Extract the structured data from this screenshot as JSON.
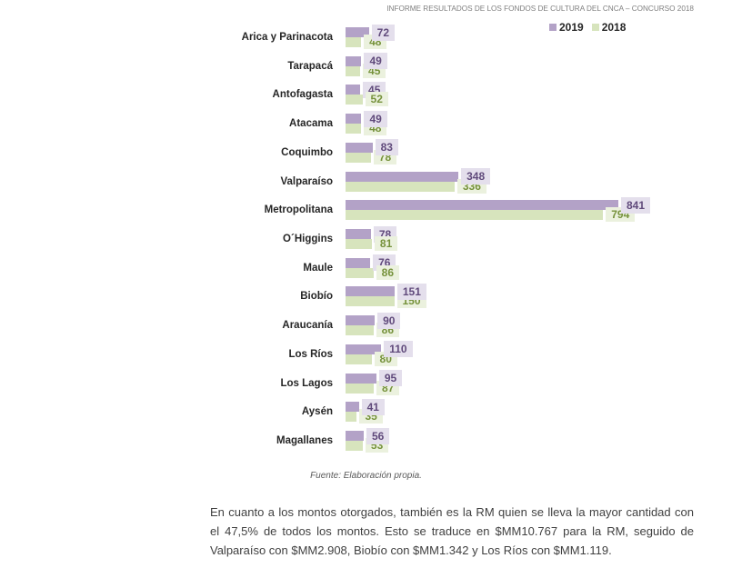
{
  "header": {
    "title": "INFORME RESULTADOS DE LOS FONDOS DE CULTURA DEL CNCA – CONCURSO 2018"
  },
  "chart_data": {
    "type": "bar",
    "orientation": "horizontal",
    "xlim": [
      0,
      1000
    ],
    "grid": false,
    "legend": "top-right",
    "categories": [
      "Arica y Parinacota",
      "Tarapacá",
      "Antofagasta",
      "Atacama",
      "Coquimbo",
      "Valparaíso",
      "Metropolitana",
      "O´Higgins",
      "Maule",
      "Biobío",
      "Araucanía",
      "Los Ríos",
      "Los Lagos",
      "Aysén",
      "Magallanes"
    ],
    "series": [
      {
        "name": "2019",
        "values": [
          72,
          49,
          45,
          49,
          83,
          348,
          841,
          78,
          76,
          151,
          90,
          110,
          95,
          41,
          56
        ],
        "color": "#b3a2c7",
        "label_color": "#604a7b",
        "label_fill": "#e4dfec"
      },
      {
        "name": "2018",
        "values": [
          48,
          45,
          52,
          48,
          78,
          336,
          794,
          81,
          86,
          150,
          86,
          80,
          87,
          35,
          53
        ],
        "color": "#d7e4bd",
        "label_color": "#76923c",
        "label_fill": "#ebf1de"
      }
    ]
  },
  "caption": {
    "source": "Fuente: Elaboración propia."
  },
  "body": {
    "paragraph_lines": [
      "En cuanto a los montos otorgados, también es la RM quien se lleva la mayor cantidad con",
      "el 47,5% de todos los montos. Esto se traduce en $MM10.767 para la RM, seguido de",
      "Valparaíso con $MM2.908, Biobío con $MM1.342 y Los Ríos con $MM1.119."
    ]
  }
}
